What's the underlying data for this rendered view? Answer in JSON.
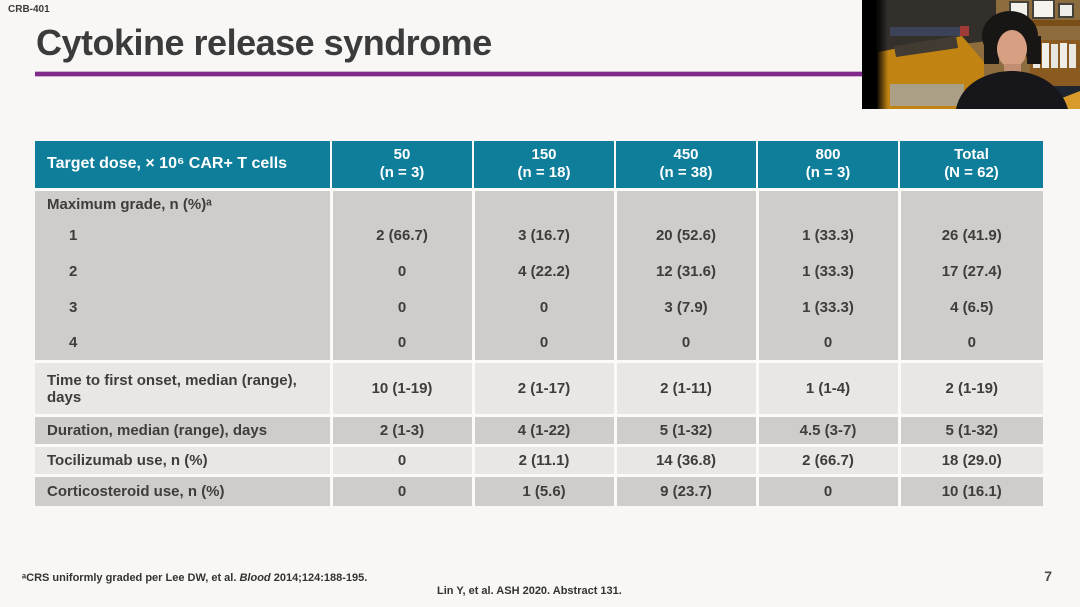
{
  "colors": {
    "accent_purple": "#82298C",
    "header_teal": "#0E7E9A",
    "row_dark": "#CFCDCA",
    "row_light": "#E9E7E4",
    "text_dark": "#3D3C3C"
  },
  "slide": {
    "study_label": "CRB-401",
    "title": "Cytokine release syndrome",
    "page_number": "7",
    "citation": "Lin Y, et al. ASH 2020. Abstract 131.",
    "footnote": {
      "prefix": "ᵃCRS uniformly graded per Lee DW, et al. ",
      "italic": "Blood",
      "suffix": " 2014;124:188-195."
    }
  },
  "table": {
    "corner_label": "Target dose, × 10⁶ CAR+ T cells",
    "columns": [
      {
        "dose": "50",
        "n": "(n = 3)"
      },
      {
        "dose": "150",
        "n": "(n = 18)"
      },
      {
        "dose": "450",
        "n": "(n = 38)"
      },
      {
        "dose": "800",
        "n": "(n = 3)"
      },
      {
        "dose": "Total",
        "n": "(N = 62)"
      }
    ],
    "sections": [
      {
        "shade": "dark",
        "rows": [
          {
            "label": "Maximum grade, n (%)ᵃ",
            "indent": false,
            "values": [
              "",
              "",
              "",
              "",
              ""
            ]
          },
          {
            "label": "1",
            "indent": true,
            "values": [
              "2 (66.7)",
              "3 (16.7)",
              "20 (52.6)",
              "1 (33.3)",
              "26 (41.9)"
            ]
          },
          {
            "label": "2",
            "indent": true,
            "values": [
              "0",
              "4 (22.2)",
              "12 (31.6)",
              "1 (33.3)",
              "17 (27.4)"
            ]
          },
          {
            "label": "3",
            "indent": true,
            "values": [
              "0",
              "0",
              "3 (7.9)",
              "1 (33.3)",
              "4 (6.5)"
            ]
          },
          {
            "label": "4",
            "indent": true,
            "values": [
              "0",
              "0",
              "0",
              "0",
              "0"
            ]
          }
        ]
      },
      {
        "shade": "light",
        "rows": [
          {
            "label": "Time to first onset, median (range), days",
            "indent": false,
            "values": [
              "10 (1-19)",
              "2 (1-17)",
              "2 (1-11)",
              "1 (1-4)",
              "2 (1-19)"
            ]
          }
        ]
      },
      {
        "shade": "dark",
        "rows": [
          {
            "label": "Duration, median (range), days",
            "indent": false,
            "values": [
              "2 (1-3)",
              "4 (1-22)",
              "5 (1-32)",
              "4.5 (3-7)",
              "5 (1-32)"
            ]
          }
        ]
      },
      {
        "shade": "light",
        "rows": [
          {
            "label": "Tocilizumab use, n (%)",
            "indent": false,
            "values": [
              "0",
              "2 (11.1)",
              "14 (36.8)",
              "2 (66.7)",
              "18 (29.0)"
            ]
          }
        ]
      },
      {
        "shade": "dark",
        "rows": [
          {
            "label": "Corticosteroid use, n (%)",
            "indent": false,
            "values": [
              "0",
              "1 (5.6)",
              "9 (23.7)",
              "0",
              "10 (16.1)"
            ]
          }
        ]
      }
    ]
  }
}
